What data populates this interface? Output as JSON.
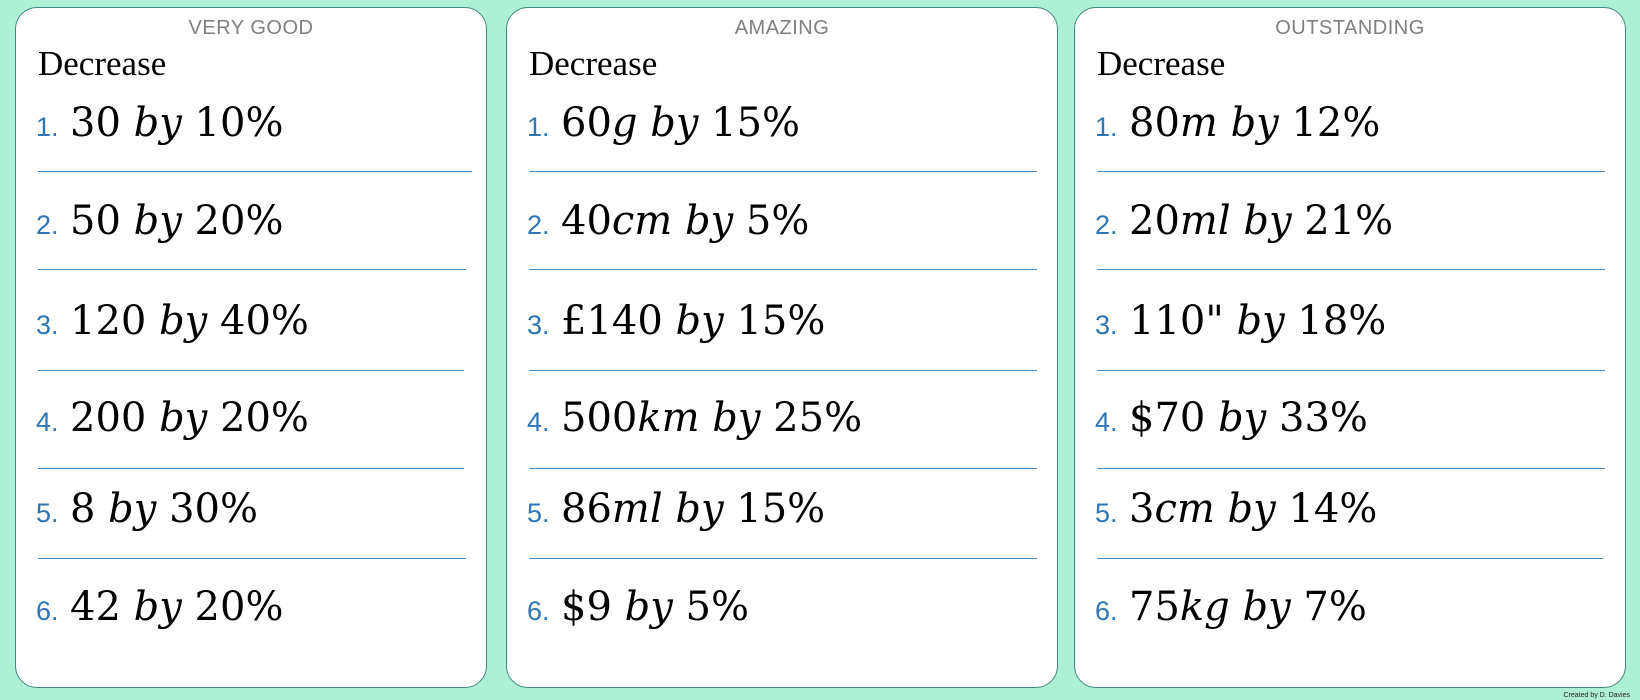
{
  "cards": [
    {
      "title": "VERY GOOD",
      "subtitle": "Decrease",
      "questions": [
        {
          "num": "1.",
          "amount": "30",
          "unit": "",
          "by": "by",
          "percent": "10%"
        },
        {
          "num": "2.",
          "amount": "50",
          "unit": "",
          "by": "by",
          "percent": "20%"
        },
        {
          "num": "3.",
          "amount": "120",
          "unit": "",
          "by": "by",
          "percent": "40%"
        },
        {
          "num": "4.",
          "amount": "200",
          "unit": "",
          "by": "by",
          "percent": "20%"
        },
        {
          "num": "5.",
          "amount": "8",
          "unit": "",
          "by": "by",
          "percent": "30%"
        },
        {
          "num": "6.",
          "amount": "42",
          "unit": "",
          "by": "by",
          "percent": "20%"
        }
      ]
    },
    {
      "title": "AMAZING",
      "subtitle": "Decrease",
      "questions": [
        {
          "num": "1.",
          "amount": "60",
          "unit": "g",
          "by": "by",
          "percent": "15%"
        },
        {
          "num": "2.",
          "amount": "40",
          "unit": "cm",
          "by": "by",
          "percent": "5%"
        },
        {
          "num": "3.",
          "amount": "£140",
          "unit": "",
          "by": "by",
          "percent": "15%"
        },
        {
          "num": "4.",
          "amount": "500",
          "unit": "km",
          "by": "by",
          "percent": "25%"
        },
        {
          "num": "5.",
          "amount": "86",
          "unit": "ml",
          "by": "by",
          "percent": "15%"
        },
        {
          "num": "6.",
          "amount": "$9",
          "unit": "",
          "by": "by",
          "percent": "5%"
        }
      ]
    },
    {
      "title": "OUTSTANDING",
      "subtitle": "Decrease",
      "questions": [
        {
          "num": "1.",
          "amount": "80",
          "unit": "m",
          "by": "by",
          "percent": "12%"
        },
        {
          "num": "2.",
          "amount": "20",
          "unit": "ml",
          "by": "by",
          "percent": "21%"
        },
        {
          "num": "3.",
          "amount": "110\"",
          "unit": "",
          "by": "by",
          "percent": "18%"
        },
        {
          "num": "4.",
          "amount": "$70",
          "unit": "",
          "by": "by",
          "percent": "33%"
        },
        {
          "num": "5.",
          "amount": "3",
          "unit": "cm",
          "by": "by",
          "percent": "14%"
        },
        {
          "num": "6.",
          "amount": "75",
          "unit": "kg",
          "by": "by",
          "percent": "7%"
        }
      ]
    }
  ],
  "footer": "Created by D. Davies"
}
